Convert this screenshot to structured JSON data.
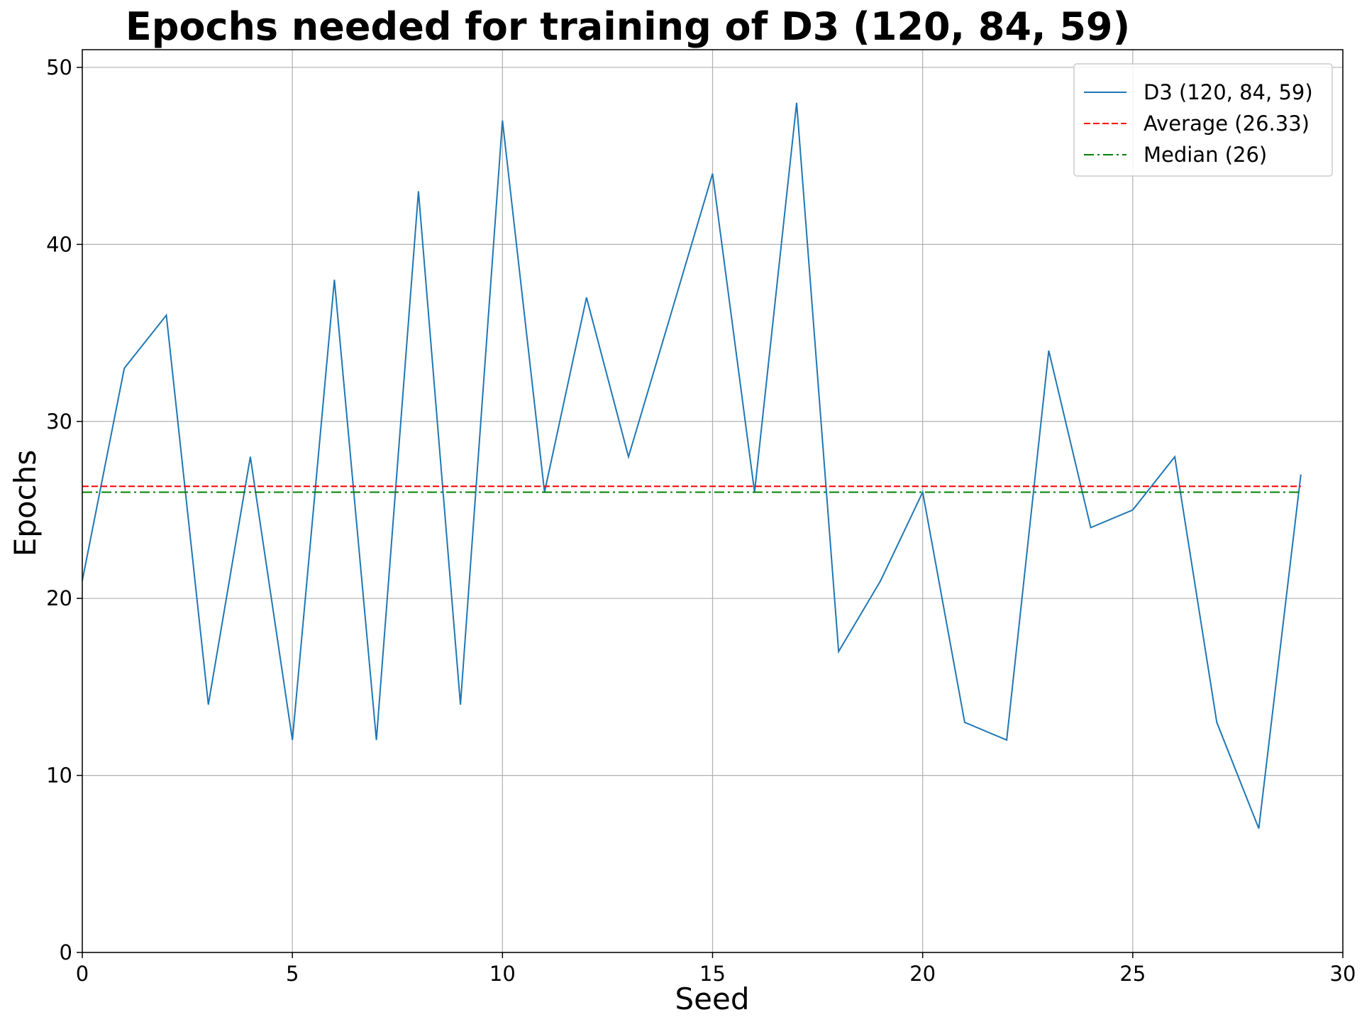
{
  "chart_data": {
    "type": "line",
    "title": "Epochs needed for training of D3 (120, 84, 59)",
    "xlabel": "Seed",
    "ylabel": "Epochs",
    "xlim": [
      0,
      30
    ],
    "ylim": [
      0,
      51
    ],
    "xticks": [
      0,
      5,
      10,
      15,
      20,
      25,
      30
    ],
    "yticks": [
      0,
      10,
      20,
      30,
      40,
      50
    ],
    "grid": true,
    "legend_position": "top-right",
    "x": [
      0,
      1,
      2,
      3,
      4,
      5,
      6,
      7,
      8,
      9,
      10,
      11,
      12,
      13,
      14,
      15,
      16,
      17,
      18,
      19,
      20,
      21,
      22,
      23,
      24,
      25,
      26,
      27,
      28,
      29
    ],
    "series": [
      {
        "name": "D3 (120, 84, 59)",
        "color": "#1f77b4",
        "style": "solid",
        "values": [
          21,
          33,
          36,
          14,
          28,
          12,
          38,
          12,
          43,
          14,
          47,
          26,
          37,
          28,
          36,
          44,
          26,
          48,
          17,
          21,
          26,
          13,
          12,
          34,
          24,
          25,
          28,
          13,
          7,
          27
        ]
      }
    ],
    "reference_lines": [
      {
        "name": "Average (26.33)",
        "value": 26.33,
        "color": "#ff0000",
        "style": "dashed"
      },
      {
        "name": "Median (26)",
        "value": 26,
        "color": "#008000",
        "style": "dashdot"
      }
    ]
  }
}
